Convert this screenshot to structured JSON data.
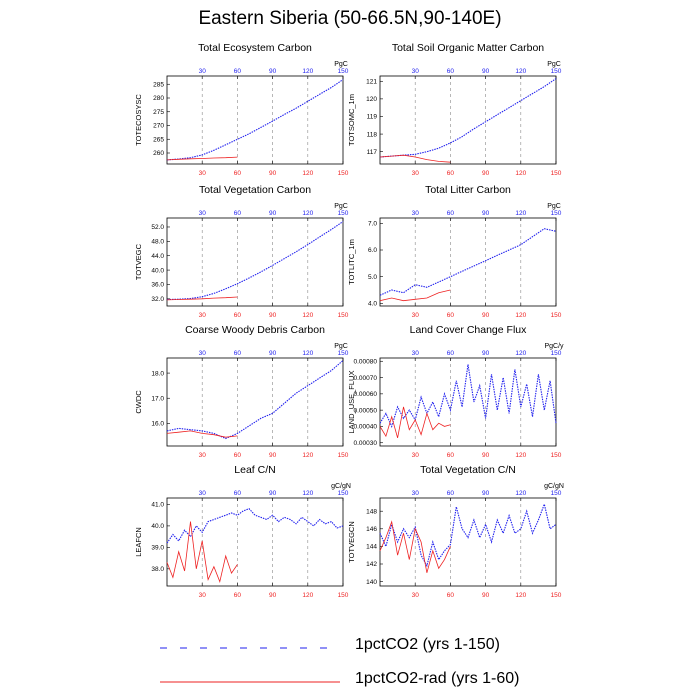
{
  "title": "Eastern Siberia (50-66.5N,90-140E)",
  "colors": {
    "series1": "#2222ee",
    "series2": "#ee2222",
    "axis": "#000000",
    "ref": "#888888"
  },
  "legend": [
    {
      "name": "1pctCO2 (yrs 1-150)",
      "style": "dashed",
      "color": "#2222ee"
    },
    {
      "name": "1pctCO2-rad (yrs 1-60)",
      "style": "solid",
      "color": "#ee2222"
    }
  ],
  "chart_data": [
    {
      "type": "line",
      "title": "Total Ecosystem Carbon",
      "ylabel": "TOTECOSYSC",
      "top_unit": "PgC",
      "xlim": [
        0,
        150
      ],
      "x_ticks": [
        30,
        60,
        90,
        120,
        150
      ],
      "ylim": [
        256,
        288
      ],
      "y_ticks": [
        260,
        265,
        270,
        275,
        280,
        285
      ],
      "series": [
        {
          "name": "1pctCO2 (yrs 1-150)",
          "x": [
            0,
            10,
            20,
            30,
            40,
            50,
            60,
            70,
            80,
            90,
            100,
            110,
            120,
            130,
            140,
            150
          ],
          "values": [
            257.5,
            257.8,
            258.3,
            259.3,
            261,
            263,
            265,
            267,
            269.3,
            271.6,
            274,
            276.3,
            278.8,
            281.3,
            283.8,
            286.7
          ]
        },
        {
          "name": "1pctCO2-rad (yrs 1-60)",
          "x": [
            0,
            10,
            20,
            30,
            40,
            50,
            60
          ],
          "values": [
            257.5,
            257.7,
            257.9,
            258.0,
            258.2,
            258.3,
            258.5
          ]
        }
      ]
    },
    {
      "type": "line",
      "title": "Total Soil Organic Matter Carbon",
      "ylabel": "TOTSOMC_1m",
      "top_unit": "PgC",
      "xlim": [
        0,
        150
      ],
      "x_ticks": [
        30,
        60,
        90,
        120,
        150
      ],
      "ylim": [
        116.3,
        121.3
      ],
      "y_ticks": [
        117.0,
        118.0,
        119.0,
        120.0,
        121.0
      ],
      "series": [
        {
          "name": "1pctCO2 (yrs 1-150)",
          "x": [
            0,
            10,
            20,
            30,
            40,
            50,
            60,
            70,
            80,
            90,
            100,
            110,
            120,
            130,
            140,
            150
          ],
          "values": [
            116.7,
            116.75,
            116.8,
            116.85,
            117.0,
            117.2,
            117.5,
            117.85,
            118.3,
            118.7,
            119.1,
            119.5,
            119.9,
            120.3,
            120.7,
            121.15
          ]
        },
        {
          "name": "1pctCO2-rad (yrs 1-60)",
          "x": [
            0,
            10,
            20,
            30,
            40,
            50,
            60
          ],
          "values": [
            116.7,
            116.75,
            116.8,
            116.7,
            116.55,
            116.45,
            116.4
          ]
        }
      ]
    },
    {
      "type": "line",
      "title": "Total Vegetation Carbon",
      "ylabel": "TOTVEGC",
      "top_unit": "PgC",
      "xlim": [
        0,
        150
      ],
      "x_ticks": [
        30,
        60,
        90,
        120,
        150
      ],
      "ylim": [
        30,
        54.5
      ],
      "y_ticks": [
        32.0,
        36.0,
        40.0,
        44.0,
        48.0,
        52.0
      ],
      "series": [
        {
          "name": "1pctCO2 (yrs 1-150)",
          "x": [
            0,
            10,
            20,
            30,
            40,
            50,
            60,
            70,
            80,
            90,
            100,
            110,
            120,
            130,
            140,
            150
          ],
          "values": [
            31.8,
            31.9,
            32.1,
            32.6,
            33.5,
            34.8,
            36.2,
            37.8,
            39.5,
            41.3,
            43.2,
            45.1,
            47.1,
            49.2,
            51.3,
            53.5
          ]
        },
        {
          "name": "1pctCO2-rad (yrs 1-60)",
          "x": [
            0,
            10,
            20,
            30,
            40,
            50,
            60
          ],
          "values": [
            31.7,
            31.8,
            31.9,
            32.0,
            32.2,
            32.3,
            32.5
          ]
        }
      ]
    },
    {
      "type": "line",
      "title": "Total Litter Carbon",
      "ylabel": "TOTLITC_1m",
      "top_unit": "PgC",
      "xlim": [
        0,
        150
      ],
      "x_ticks": [
        30,
        60,
        90,
        120,
        150
      ],
      "ylim": [
        3.9,
        7.2
      ],
      "y_ticks": [
        4.0,
        5.0,
        6.0,
        7.0
      ],
      "series": [
        {
          "name": "1pctCO2 (yrs 1-150)",
          "x": [
            0,
            10,
            20,
            30,
            40,
            50,
            60,
            70,
            80,
            90,
            100,
            110,
            120,
            130,
            140,
            150
          ],
          "values": [
            4.3,
            4.5,
            4.4,
            4.7,
            4.6,
            4.8,
            5.0,
            5.2,
            5.4,
            5.6,
            5.8,
            6.0,
            6.2,
            6.5,
            6.8,
            6.7
          ]
        },
        {
          "name": "1pctCO2-rad (yrs 1-60)",
          "x": [
            0,
            10,
            20,
            30,
            40,
            50,
            60
          ],
          "values": [
            4.1,
            4.2,
            4.1,
            4.15,
            4.2,
            4.4,
            4.5
          ]
        }
      ]
    },
    {
      "type": "line",
      "title": "Coarse Woody Debris Carbon",
      "ylabel": "CWDC",
      "top_unit": "PgC",
      "xlim": [
        0,
        150
      ],
      "x_ticks": [
        30,
        60,
        90,
        120,
        150
      ],
      "ylim": [
        15.1,
        18.6
      ],
      "y_ticks": [
        16.0,
        17.0,
        18.0
      ],
      "series": [
        {
          "name": "1pctCO2 (yrs 1-150)",
          "x": [
            0,
            10,
            20,
            30,
            40,
            50,
            60,
            70,
            80,
            90,
            100,
            110,
            120,
            130,
            140,
            150
          ],
          "values": [
            15.7,
            15.8,
            15.75,
            15.7,
            15.6,
            15.4,
            15.6,
            15.9,
            16.2,
            16.4,
            16.8,
            17.2,
            17.5,
            17.8,
            18.1,
            18.5
          ]
        },
        {
          "name": "1pctCO2-rad (yrs 1-60)",
          "x": [
            0,
            10,
            20,
            30,
            40,
            50,
            60
          ],
          "values": [
            15.6,
            15.65,
            15.7,
            15.6,
            15.55,
            15.45,
            15.5
          ]
        }
      ]
    },
    {
      "type": "line",
      "title": "Land Cover Change Flux",
      "ylabel": "LAND_USE_FLUX",
      "top_unit": "PgC/y",
      "xlim": [
        0,
        150
      ],
      "x_ticks": [
        30,
        60,
        90,
        120,
        150
      ],
      "ylim": [
        0.00028,
        0.00082
      ],
      "y_ticks": [
        0.0003,
        0.0004,
        0.0005,
        0.0006,
        0.0007,
        0.0008
      ],
      "series": [
        {
          "name": "1pctCO2 (yrs 1-150)",
          "x": [
            0,
            5,
            10,
            15,
            20,
            25,
            30,
            35,
            40,
            45,
            50,
            55,
            60,
            65,
            70,
            75,
            80,
            85,
            90,
            95,
            100,
            105,
            110,
            115,
            120,
            125,
            130,
            135,
            140,
            145,
            150
          ],
          "values": [
            0.00042,
            0.00048,
            0.0004,
            0.00052,
            0.00045,
            0.0005,
            0.00044,
            0.00058,
            0.00048,
            0.00055,
            0.00046,
            0.0006,
            0.0005,
            0.00068,
            0.00052,
            0.00078,
            0.00055,
            0.00065,
            0.00045,
            0.00072,
            0.0005,
            0.0007,
            0.00048,
            0.00075,
            0.00052,
            0.00066,
            0.00046,
            0.00072,
            0.0005,
            0.00068,
            0.00042
          ]
        },
        {
          "name": "1pctCO2-rad (yrs 1-60)",
          "x": [
            0,
            5,
            10,
            15,
            20,
            25,
            30,
            35,
            40,
            45,
            50,
            55,
            60
          ],
          "values": [
            0.0004,
            0.00034,
            0.00046,
            0.00033,
            0.00052,
            0.00038,
            0.00044,
            0.00035,
            0.00048,
            0.00038,
            0.00042,
            0.0004,
            0.00041
          ]
        }
      ]
    },
    {
      "type": "line",
      "title": "Leaf C/N",
      "ylabel": "LEAFCN",
      "top_unit": "gC/gN",
      "xlim": [
        0,
        150
      ],
      "x_ticks": [
        30,
        60,
        90,
        120,
        150
      ],
      "ylim": [
        37.2,
        41.3
      ],
      "y_ticks": [
        38.0,
        39.0,
        40.0,
        41.0
      ],
      "series": [
        {
          "name": "1pctCO2 (yrs 1-150)",
          "x": [
            0,
            5,
            10,
            15,
            20,
            25,
            30,
            35,
            40,
            45,
            50,
            55,
            60,
            65,
            70,
            75,
            80,
            85,
            90,
            95,
            100,
            105,
            110,
            115,
            120,
            125,
            130,
            135,
            140,
            145,
            150
          ],
          "values": [
            39.2,
            39.6,
            39.3,
            39.8,
            39.5,
            40.0,
            39.7,
            40.2,
            40.3,
            40.4,
            40.5,
            40.6,
            40.5,
            40.7,
            40.8,
            40.5,
            40.4,
            40.3,
            40.5,
            40.2,
            40.4,
            40.3,
            40.1,
            40.4,
            40.2,
            40.0,
            40.3,
            40.1,
            40.2,
            39.9,
            40.0
          ]
        },
        {
          "name": "1pctCO2-rad (yrs 1-60)",
          "x": [
            0,
            5,
            10,
            15,
            20,
            25,
            30,
            35,
            40,
            45,
            50,
            55,
            60
          ],
          "values": [
            38.3,
            37.6,
            38.8,
            37.9,
            40.2,
            38.0,
            39.3,
            37.5,
            38.1,
            37.4,
            38.6,
            37.8,
            38.2
          ]
        }
      ]
    },
    {
      "type": "line",
      "title": "Total Vegetation C/N",
      "ylabel": "TOTVEGCN",
      "top_unit": "gC/gN",
      "xlim": [
        0,
        150
      ],
      "x_ticks": [
        30,
        60,
        90,
        120,
        150
      ],
      "ylim": [
        139.5,
        149.5
      ],
      "y_ticks": [
        140,
        142,
        144,
        146,
        148
      ],
      "series": [
        {
          "name": "1pctCO2 (yrs 1-150)",
          "x": [
            0,
            5,
            10,
            15,
            20,
            25,
            30,
            35,
            40,
            45,
            50,
            55,
            60,
            65,
            70,
            75,
            80,
            85,
            90,
            95,
            100,
            105,
            110,
            115,
            120,
            125,
            130,
            135,
            140,
            145,
            150
          ],
          "values": [
            145.5,
            144.0,
            146.5,
            144.5,
            146.0,
            145.0,
            146.2,
            143.0,
            141.8,
            144.5,
            142.5,
            143.5,
            144.2,
            148.5,
            146.0,
            145.0,
            147.0,
            145.0,
            146.5,
            144.5,
            147.0,
            145.5,
            147.5,
            145.5,
            146.0,
            148.0,
            145.5,
            147.0,
            148.8,
            146.0,
            146.5
          ]
        },
        {
          "name": "1pctCO2-rad (yrs 1-60)",
          "x": [
            0,
            5,
            10,
            15,
            20,
            25,
            30,
            35,
            40,
            45,
            50,
            55,
            60
          ],
          "values": [
            143.5,
            145.0,
            146.8,
            143.0,
            145.5,
            142.5,
            146.0,
            144.5,
            141.0,
            143.5,
            141.5,
            142.5,
            144.0
          ]
        }
      ]
    }
  ]
}
